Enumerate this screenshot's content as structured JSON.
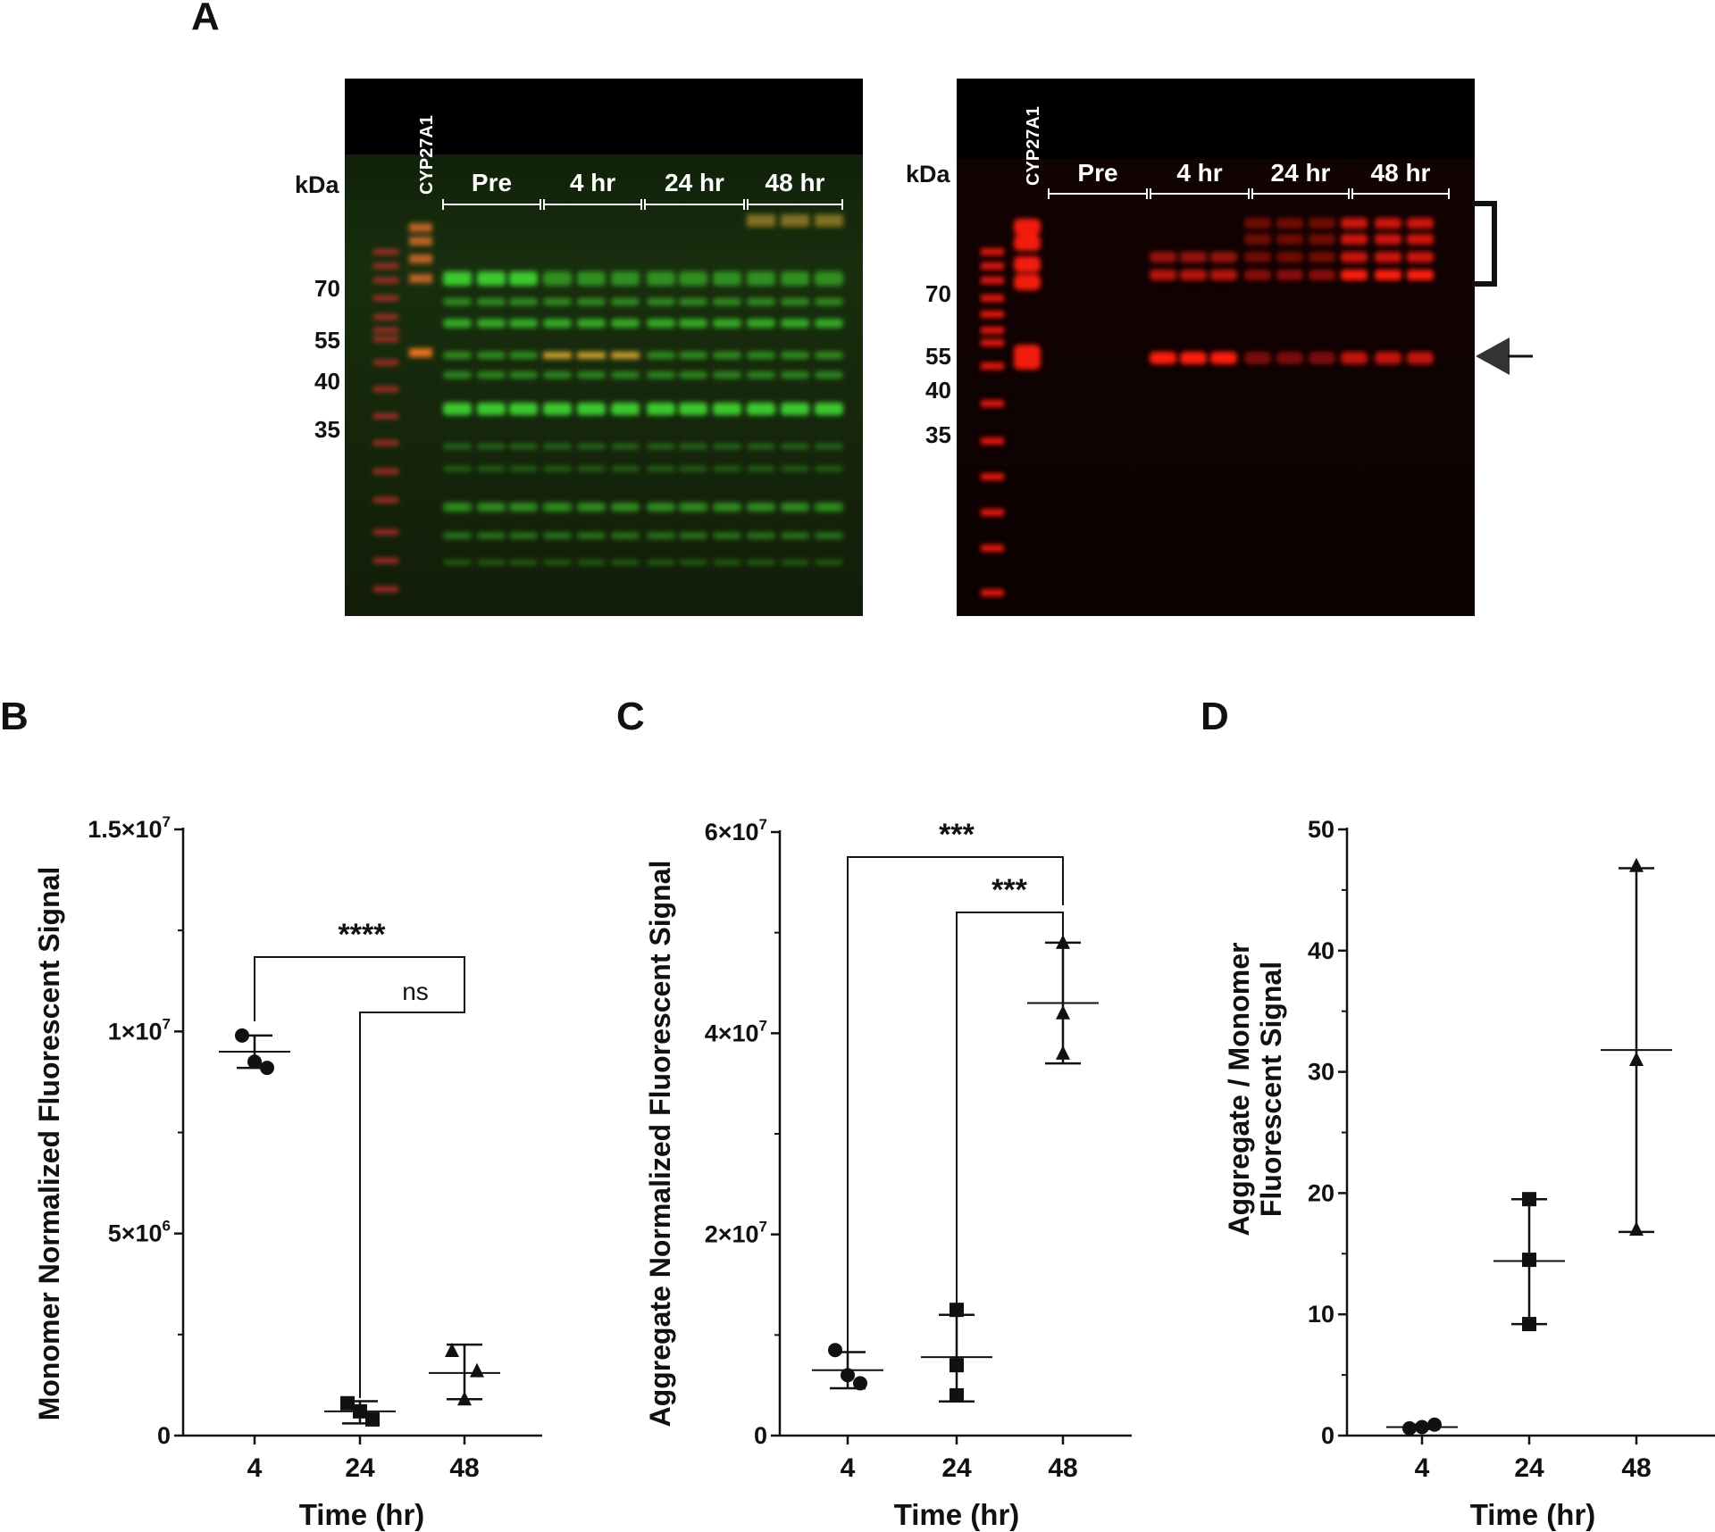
{
  "panels": {
    "a_label": "A",
    "b_label": "B",
    "c_label": "C",
    "d_label": "D"
  },
  "blot": {
    "kda_label": "kDa",
    "standard_label": "CYP27A1",
    "groups": [
      "Pre",
      "4 hr",
      "24 hr",
      "48 hr"
    ],
    "markers_left": [
      "70",
      "55",
      "40",
      "35"
    ],
    "markers_right": [
      "70",
      "55",
      "40",
      "35"
    ],
    "channel_colors": {
      "left": "#3fd12f",
      "right": "#ff1a10"
    }
  },
  "chart_data": [
    {
      "type": "scatter",
      "panel": "B",
      "ylabel": "Monomer Normalized Fluorescent Signal",
      "xlabel": "Time (hr)",
      "categories": [
        "4",
        "24",
        "48"
      ],
      "y_ticks": [
        "0",
        "5×10",
        "1×10",
        "1.5×10"
      ],
      "y_tick_exponents": [
        "",
        "6",
        "7",
        "7"
      ],
      "ylim": [
        0,
        15000000
      ],
      "markers": [
        "circle",
        "square",
        "triangle"
      ],
      "series": [
        {
          "points": [
            9900000,
            9100000,
            9250000
          ],
          "mean": 9500000,
          "sd_low": 9100000,
          "sd_high": 9900000
        },
        {
          "points": [
            800000,
            400000,
            600000
          ],
          "mean": 600000,
          "sd_low": 300000,
          "sd_high": 850000
        },
        {
          "points": [
            2100000,
            1600000,
            900000
          ],
          "mean": 1550000,
          "sd_low": 900000,
          "sd_high": 2250000
        }
      ],
      "significance": [
        {
          "from": "4",
          "to": "48",
          "label": "****"
        },
        {
          "from": "24",
          "to": "48",
          "label": "ns"
        }
      ]
    },
    {
      "type": "scatter",
      "panel": "C",
      "ylabel": "Aggregate Normalized Fluorescent Signal",
      "xlabel": "Time (hr)",
      "categories": [
        "4",
        "24",
        "48"
      ],
      "y_ticks": [
        "0",
        "2×10",
        "4×10",
        "6×10"
      ],
      "y_tick_exponents": [
        "",
        "7",
        "7",
        "7"
      ],
      "ylim": [
        0,
        60000000
      ],
      "markers": [
        "circle",
        "square",
        "triangle"
      ],
      "series": [
        {
          "points": [
            8500000,
            5200000,
            6000000
          ],
          "mean": 6500000,
          "sd_low": 4700000,
          "sd_high": 8300000
        },
        {
          "points": [
            12500000,
            7000000,
            4000000
          ],
          "mean": 7800000,
          "sd_low": 3400000,
          "sd_high": 12000000
        },
        {
          "points": [
            49000000,
            42000000,
            38000000
          ],
          "mean": 43000000,
          "sd_low": 37000000,
          "sd_high": 49000000
        }
      ],
      "significance": [
        {
          "from": "4",
          "to": "48",
          "label": "***"
        },
        {
          "from": "24",
          "to": "48",
          "label": "***"
        }
      ]
    },
    {
      "type": "scatter",
      "panel": "D",
      "ylabel": "Aggregate / Monomer Fluorescent Signal",
      "ylabel_lines": [
        "Aggregate / Monomer",
        "Fluorescent Signal"
      ],
      "xlabel": "Time (hr)",
      "categories": [
        "4",
        "24",
        "48"
      ],
      "y_ticks": [
        "0",
        "10",
        "20",
        "30",
        "40",
        "50"
      ],
      "ylim": [
        0,
        50
      ],
      "markers": [
        "circle",
        "square",
        "triangle"
      ],
      "series": [
        {
          "points": [
            0.6,
            0.9,
            0.7
          ],
          "mean": 0.7,
          "sd_low": 0.55,
          "sd_high": 0.9
        },
        {
          "points": [
            19.5,
            14.5,
            9.2
          ],
          "mean": 14.4,
          "sd_low": 9.2,
          "sd_high": 19.5
        },
        {
          "points": [
            47.0,
            31.0,
            17.0
          ],
          "mean": 31.8,
          "sd_low": 16.8,
          "sd_high": 46.8
        }
      ]
    }
  ]
}
